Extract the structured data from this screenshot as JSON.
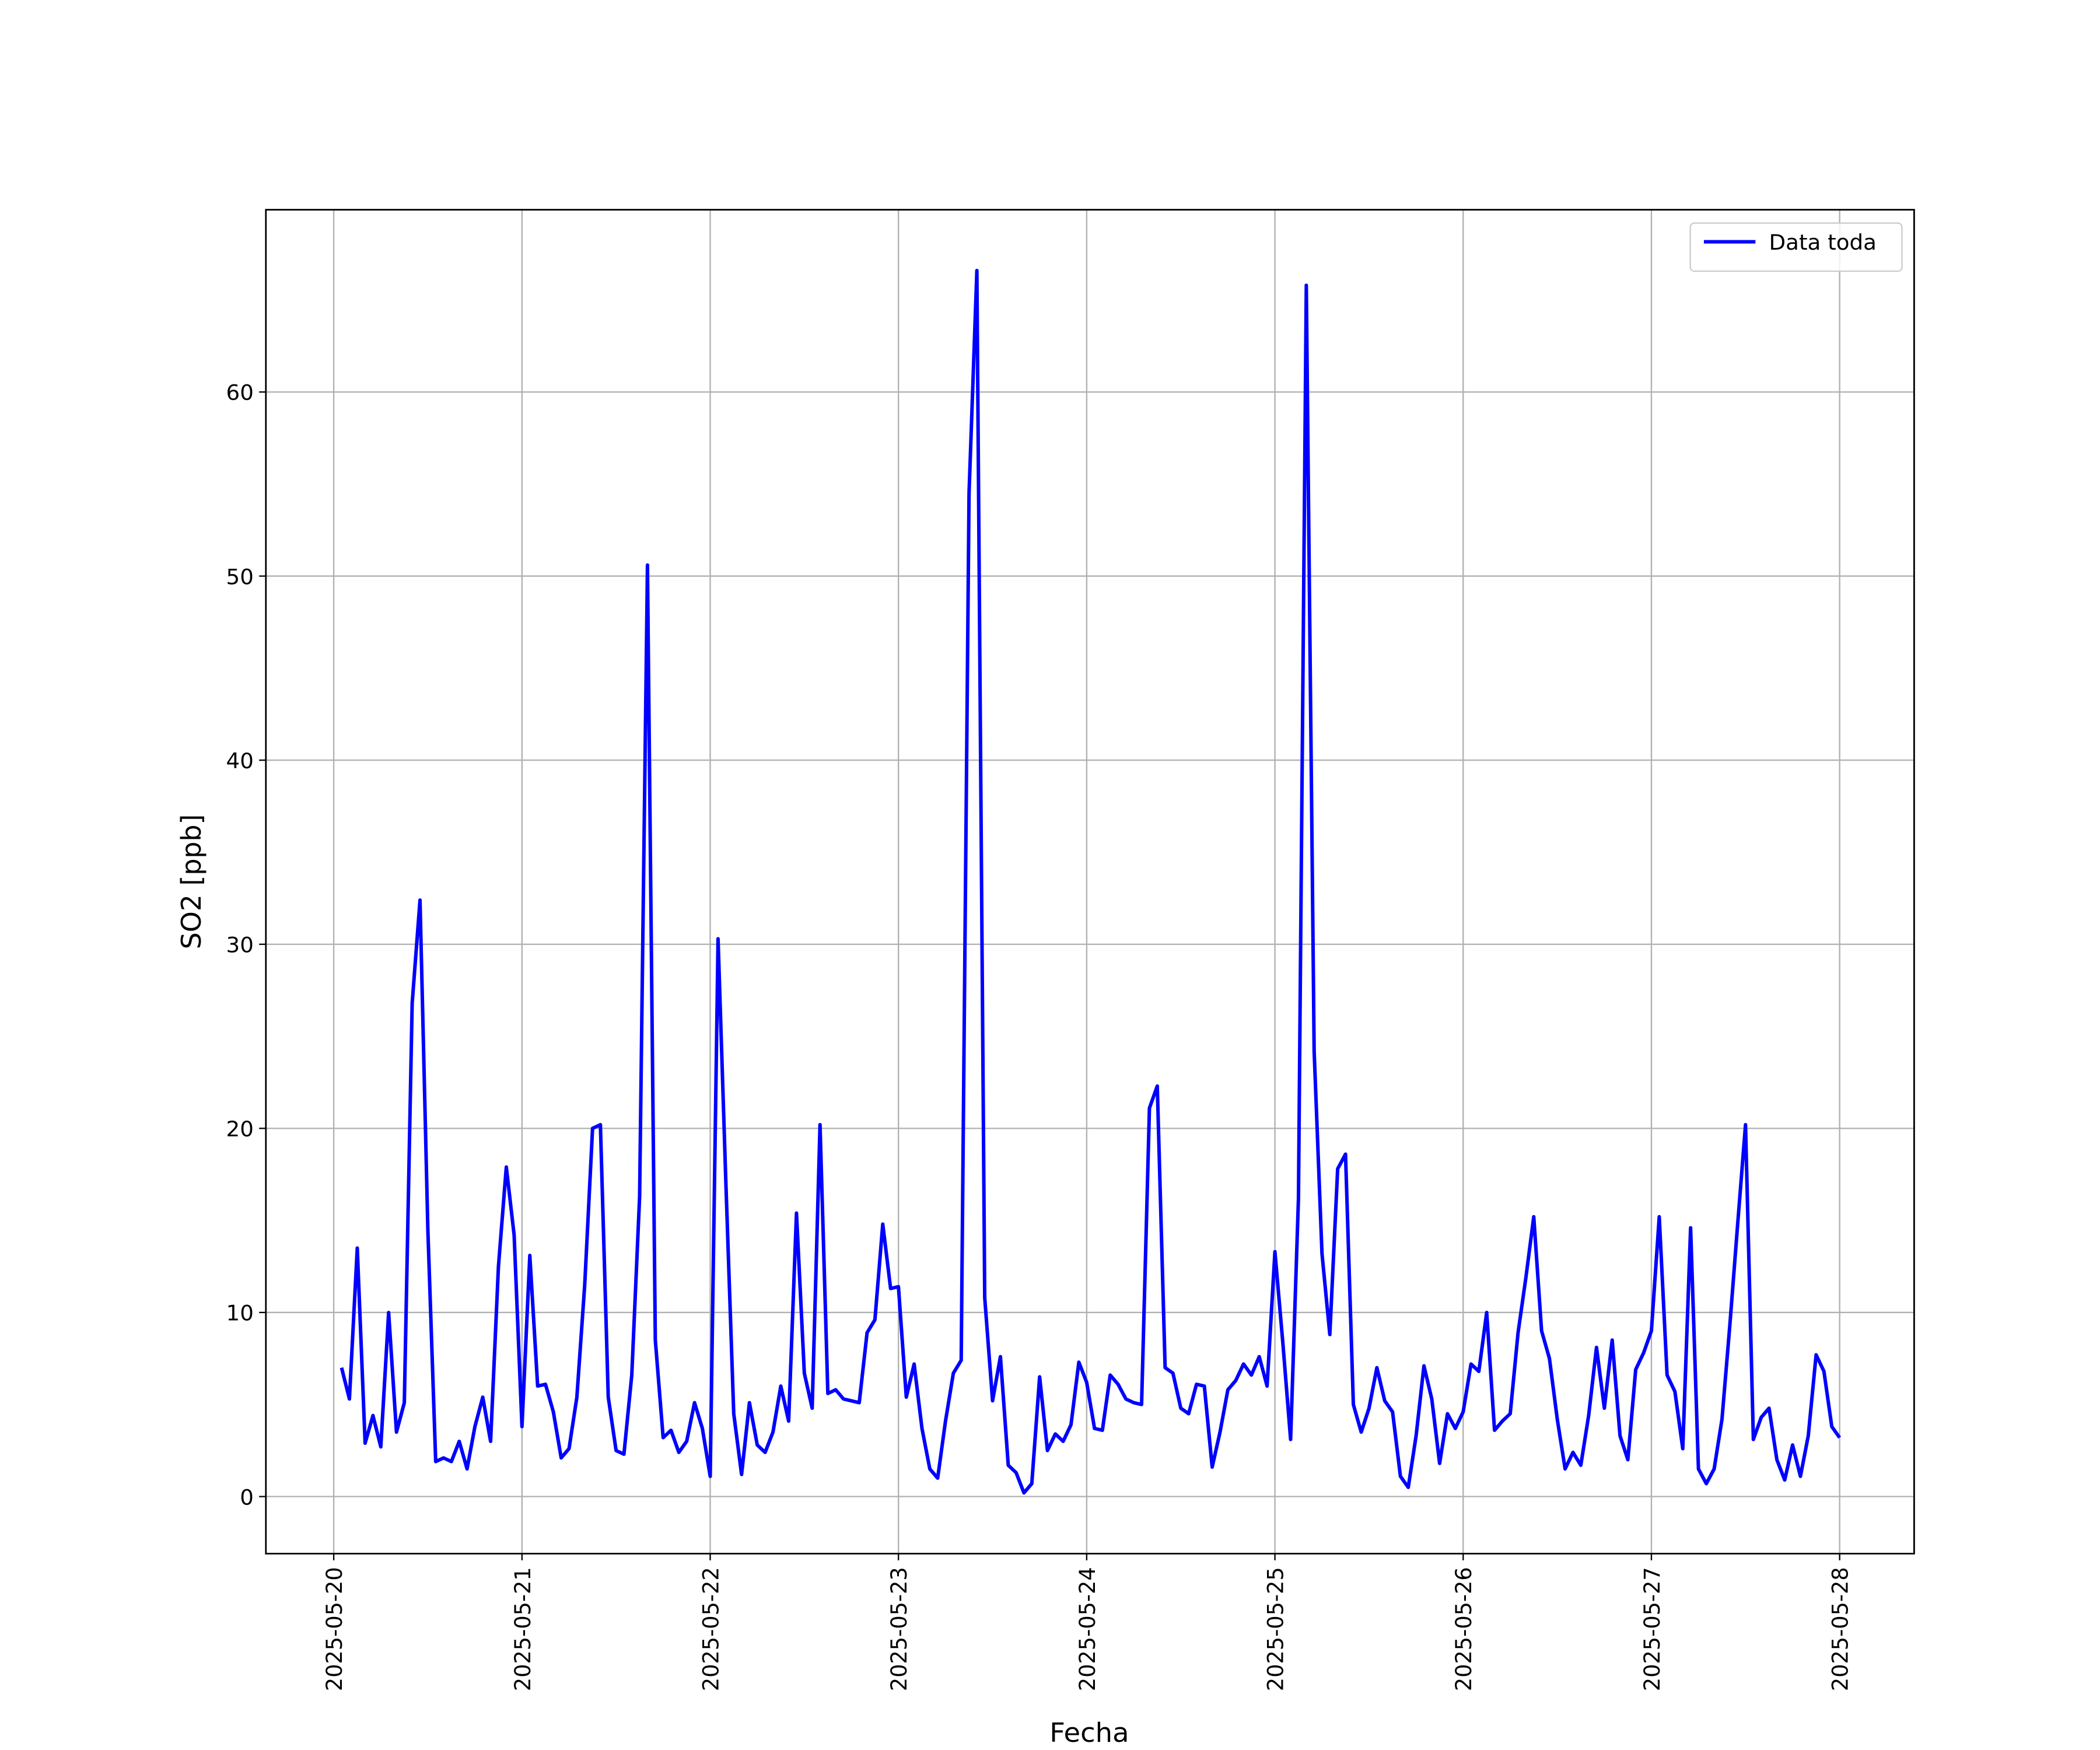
{
  "chart_data": {
    "type": "line",
    "x_label": "Fecha",
    "y_label": "SO2 [ppb]",
    "grid": true,
    "legend": "upper right",
    "x": [
      "2025-05-20 01:00",
      "2025-05-20 02:00",
      "2025-05-20 03:00",
      "2025-05-20 04:00",
      "2025-05-20 05:00",
      "2025-05-20 06:00",
      "2025-05-20 07:00",
      "2025-05-20 08:00",
      "2025-05-20 09:00",
      "2025-05-20 10:00",
      "2025-05-20 11:00",
      "2025-05-20 12:00",
      "2025-05-20 13:00",
      "2025-05-20 14:00",
      "2025-05-20 15:00",
      "2025-05-20 16:00",
      "2025-05-20 17:00",
      "2025-05-20 18:00",
      "2025-05-20 19:00",
      "2025-05-20 20:00",
      "2025-05-20 21:00",
      "2025-05-20 22:00",
      "2025-05-20 23:00",
      "2025-05-21 00:00",
      "2025-05-21 01:00",
      "2025-05-21 02:00",
      "2025-05-21 03:00",
      "2025-05-21 04:00",
      "2025-05-21 05:00",
      "2025-05-21 06:00",
      "2025-05-21 07:00",
      "2025-05-21 08:00",
      "2025-05-21 09:00",
      "2025-05-21 10:00",
      "2025-05-21 11:00",
      "2025-05-21 12:00",
      "2025-05-21 13:00",
      "2025-05-21 14:00",
      "2025-05-21 15:00",
      "2025-05-21 16:00",
      "2025-05-21 17:00",
      "2025-05-21 18:00",
      "2025-05-21 19:00",
      "2025-05-21 20:00",
      "2025-05-21 21:00",
      "2025-05-21 22:00",
      "2025-05-21 23:00",
      "2025-05-22 00:00",
      "2025-05-22 01:00",
      "2025-05-22 02:00",
      "2025-05-22 03:00",
      "2025-05-22 04:00",
      "2025-05-22 05:00",
      "2025-05-22 06:00",
      "2025-05-22 07:00",
      "2025-05-22 08:00",
      "2025-05-22 09:00",
      "2025-05-22 10:00",
      "2025-05-22 11:00",
      "2025-05-22 12:00",
      "2025-05-22 13:00",
      "2025-05-22 14:00",
      "2025-05-22 15:00",
      "2025-05-22 16:00",
      "2025-05-22 17:00",
      "2025-05-22 18:00",
      "2025-05-22 19:00",
      "2025-05-22 20:00",
      "2025-05-22 21:00",
      "2025-05-22 22:00",
      "2025-05-22 23:00",
      "2025-05-23 00:00",
      "2025-05-23 01:00",
      "2025-05-23 02:00",
      "2025-05-23 03:00",
      "2025-05-23 04:00",
      "2025-05-23 05:00",
      "2025-05-23 06:00",
      "2025-05-23 07:00",
      "2025-05-23 08:00",
      "2025-05-23 09:00",
      "2025-05-23 10:00",
      "2025-05-23 11:00",
      "2025-05-23 12:00",
      "2025-05-23 13:00",
      "2025-05-23 14:00",
      "2025-05-23 15:00",
      "2025-05-23 16:00",
      "2025-05-23 17:00",
      "2025-05-23 18:00",
      "2025-05-23 19:00",
      "2025-05-23 20:00",
      "2025-05-23 21:00",
      "2025-05-23 22:00",
      "2025-05-23 23:00",
      "2025-05-24 00:00",
      "2025-05-24 01:00",
      "2025-05-24 02:00",
      "2025-05-24 03:00",
      "2025-05-24 04:00",
      "2025-05-24 05:00",
      "2025-05-24 06:00",
      "2025-05-24 07:00",
      "2025-05-24 08:00",
      "2025-05-24 09:00",
      "2025-05-24 10:00",
      "2025-05-24 11:00",
      "2025-05-24 12:00",
      "2025-05-24 13:00",
      "2025-05-24 14:00",
      "2025-05-24 15:00",
      "2025-05-24 16:00",
      "2025-05-24 17:00",
      "2025-05-24 18:00",
      "2025-05-24 19:00",
      "2025-05-24 20:00",
      "2025-05-24 21:00",
      "2025-05-24 22:00",
      "2025-05-24 23:00",
      "2025-05-25 00:00",
      "2025-05-25 01:00",
      "2025-05-25 02:00",
      "2025-05-25 03:00",
      "2025-05-25 04:00",
      "2025-05-25 05:00",
      "2025-05-25 06:00",
      "2025-05-25 07:00",
      "2025-05-25 08:00",
      "2025-05-25 09:00",
      "2025-05-25 10:00",
      "2025-05-25 11:00",
      "2025-05-25 12:00",
      "2025-05-25 13:00",
      "2025-05-25 14:00",
      "2025-05-25 15:00",
      "2025-05-25 16:00",
      "2025-05-25 17:00",
      "2025-05-25 18:00",
      "2025-05-25 19:00",
      "2025-05-25 20:00",
      "2025-05-25 21:00",
      "2025-05-25 22:00",
      "2025-05-25 23:00",
      "2025-05-26 00:00",
      "2025-05-26 01:00",
      "2025-05-26 02:00",
      "2025-05-26 03:00",
      "2025-05-26 04:00",
      "2025-05-26 05:00",
      "2025-05-26 06:00",
      "2025-05-26 07:00",
      "2025-05-26 08:00",
      "2025-05-26 09:00",
      "2025-05-26 10:00",
      "2025-05-26 11:00",
      "2025-05-26 12:00",
      "2025-05-26 13:00",
      "2025-05-26 14:00",
      "2025-05-26 15:00",
      "2025-05-26 16:00",
      "2025-05-26 17:00",
      "2025-05-26 18:00",
      "2025-05-26 19:00",
      "2025-05-26 20:00",
      "2025-05-26 21:00",
      "2025-05-26 22:00",
      "2025-05-26 23:00",
      "2025-05-27 00:00",
      "2025-05-27 01:00",
      "2025-05-27 02:00",
      "2025-05-27 03:00",
      "2025-05-27 04:00",
      "2025-05-27 05:00",
      "2025-05-27 06:00",
      "2025-05-27 07:00",
      "2025-05-27 08:00",
      "2025-05-27 09:00",
      "2025-05-27 10:00",
      "2025-05-27 11:00",
      "2025-05-27 12:00",
      "2025-05-27 13:00",
      "2025-05-27 14:00",
      "2025-05-27 15:00",
      "2025-05-27 16:00",
      "2025-05-27 17:00",
      "2025-05-27 18:00",
      "2025-05-27 19:00",
      "2025-05-27 20:00",
      "2025-05-27 21:00",
      "2025-05-27 22:00",
      "2025-05-27 23:00",
      "2025-05-28 00:00"
    ],
    "series": [
      {
        "name": "Data toda",
        "color": "#0000ff",
        "values": [
          7.0,
          5.3,
          13.5,
          2.9,
          4.4,
          2.7,
          10.0,
          3.5,
          5.1,
          26.8,
          32.4,
          14.5,
          1.9,
          2.1,
          1.9,
          3.0,
          1.5,
          3.8,
          5.4,
          3.0,
          12.5,
          17.9,
          14.2,
          3.8,
          13.1,
          6.0,
          6.1,
          4.6,
          2.1,
          2.6,
          5.4,
          11.5,
          20.0,
          20.2,
          5.4,
          2.5,
          2.3,
          6.6,
          16.3,
          50.6,
          8.5,
          3.2,
          3.6,
          2.4,
          3.0,
          5.1,
          3.7,
          1.1,
          30.3,
          17.0,
          4.5,
          1.2,
          5.1,
          2.8,
          2.4,
          3.5,
          6.0,
          4.1,
          15.4,
          6.7,
          4.8,
          20.2,
          5.6,
          5.8,
          5.3,
          5.2,
          5.1,
          8.9,
          9.6,
          14.8,
          11.3,
          11.4,
          5.4,
          7.2,
          3.7,
          1.5,
          1.0,
          4.1,
          6.7,
          7.4,
          54.5,
          66.6,
          10.8,
          5.2,
          7.6,
          1.7,
          1.3,
          0.2,
          0.7,
          6.5,
          2.5,
          3.4,
          3.0,
          3.9,
          7.3,
          6.2,
          3.7,
          3.6,
          6.6,
          6.1,
          5.3,
          5.1,
          5.0,
          21.1,
          22.3,
          7.0,
          6.7,
          4.8,
          4.5,
          6.1,
          6.0,
          1.6,
          3.5,
          5.8,
          6.3,
          7.2,
          6.6,
          7.6,
          6.0,
          13.3,
          8.4,
          3.1,
          16.2,
          65.8,
          24.2,
          13.2,
          8.8,
          17.8,
          18.6,
          5.0,
          3.5,
          4.8,
          7.0,
          5.2,
          4.6,
          1.1,
          0.5,
          3.3,
          7.1,
          5.3,
          1.8,
          4.5,
          3.7,
          4.6,
          7.2,
          6.8,
          10.0,
          3.6,
          4.1,
          4.5,
          8.9,
          11.9,
          15.2,
          9.0,
          7.5,
          4.2,
          1.5,
          2.4,
          1.7,
          4.4,
          8.1,
          4.8,
          8.5,
          3.3,
          2.0,
          6.9,
          7.8,
          9.0,
          15.2,
          6.6,
          5.7,
          2.6,
          14.6,
          1.5,
          0.7,
          1.5,
          4.2,
          9.3,
          14.8,
          20.2,
          3.1,
          4.3,
          4.8,
          2.0,
          0.9,
          2.8,
          1.1,
          3.3,
          7.7,
          6.8,
          3.8,
          3.2
        ]
      }
    ],
    "xlim": [
      "2025-05-19 15:21",
      "2025-05-28 09:30"
    ],
    "xticks": [
      "2025-05-20",
      "2025-05-21",
      "2025-05-22",
      "2025-05-23",
      "2025-05-24",
      "2025-05-25",
      "2025-05-26",
      "2025-05-27",
      "2025-05-28"
    ],
    "ylim": [
      -3.1,
      69.9
    ],
    "yticks": [
      0,
      10,
      20,
      30,
      40,
      50,
      60
    ]
  }
}
